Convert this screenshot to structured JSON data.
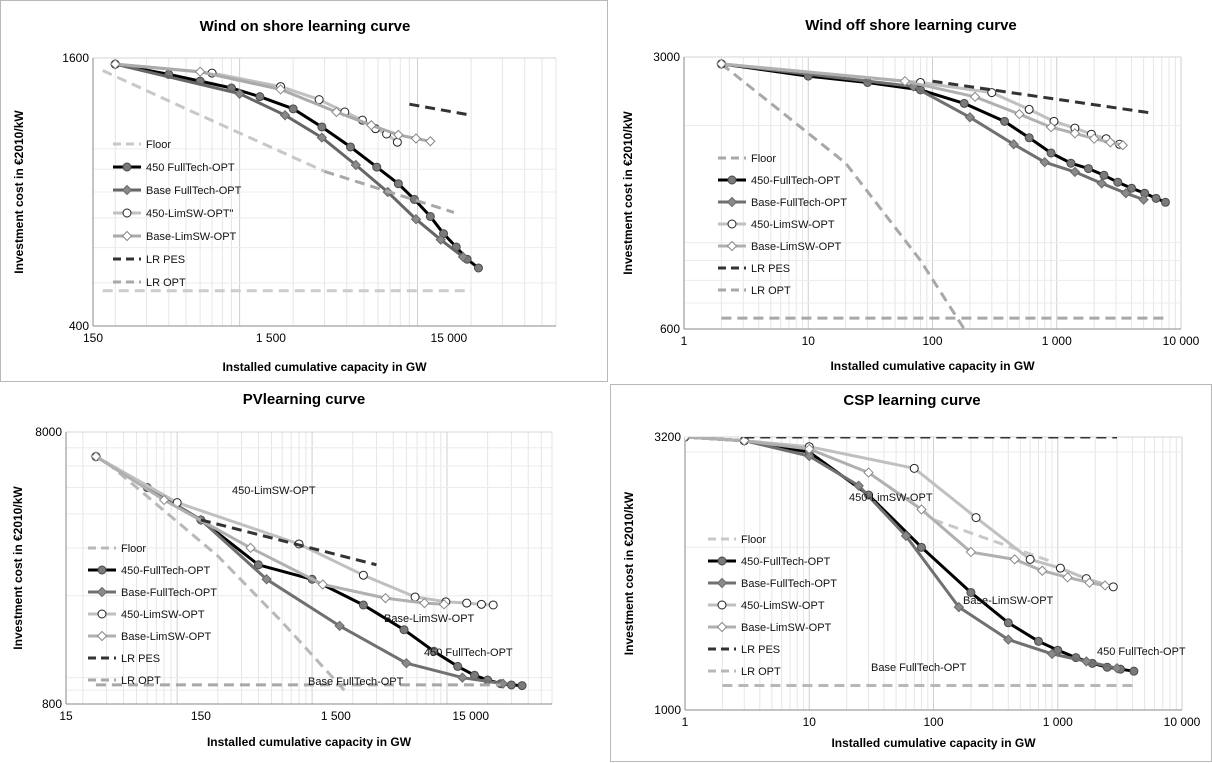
{
  "chart_data": [
    {
      "type": "line",
      "title": "Wind on shore learning curve",
      "xlabel": "Installed cumulative capacity in GW",
      "ylabel": "Investment cost in €2010/kW",
      "xscale": "log",
      "yscale": "log",
      "xlim": [
        150,
        60000
      ],
      "ylim": [
        400,
        1600
      ],
      "xticks": [
        150,
        1500,
        15000
      ],
      "xtick_labels": [
        "150",
        "1 500",
        "15 000"
      ],
      "yticks": [
        400,
        1600
      ],
      "ytick_labels": [
        "400",
        "1600"
      ],
      "legend": "left",
      "annotations": [],
      "series": [
        {
          "name": "Floor",
          "style": "dash",
          "color": "#c8c8c8",
          "marker": "none",
          "x": [
            170,
            500,
            1200,
            3000
          ],
          "y": [
            1500,
            1230,
            1050,
            890
          ]
        },
        {
          "name": "450 FullTech-OPT",
          "style": "solid",
          "color": "#000000",
          "marker": "circle-filled",
          "x": [
            200,
            400,
            600,
            900,
            1300,
            2000,
            2900,
            4200,
            5900,
            7800,
            9600,
            11800,
            14000,
            16500,
            19000,
            22000
          ],
          "y": [
            1550,
            1470,
            1420,
            1370,
            1310,
            1230,
            1120,
            1010,
            910,
            835,
            770,
            705,
            645,
            602,
            565,
            540
          ]
        },
        {
          "name": "Base FullTech-OPT",
          "style": "solid",
          "color": "#666666",
          "marker": "diamond-filled",
          "x": [
            200,
            1000,
            1800,
            2900,
            4500,
            6800,
            9800,
            13500,
            18000
          ],
          "y": [
            1550,
            1330,
            1190,
            1060,
            920,
            800,
            695,
            625,
            572
          ]
        },
        {
          "name": "450-LimSW-OPT\"",
          "style": "solid",
          "color": "#c0c0c0",
          "marker": "circle-open",
          "x": [
            200,
            700,
            1700,
            2800,
            3900,
            4900,
            5800,
            6700,
            7700
          ],
          "y": [
            1550,
            1480,
            1380,
            1290,
            1210,
            1160,
            1110,
            1080,
            1035
          ]
        },
        {
          "name": "Base-LimSW-OPT",
          "style": "solid",
          "color": "#aaaaaa",
          "marker": "diamond-open",
          "x": [
            200,
            600,
            1700,
            3500,
            5500,
            7800,
            9800,
            11800
          ],
          "y": [
            1550,
            1490,
            1360,
            1210,
            1130,
            1075,
            1055,
            1040
          ]
        },
        {
          "name": "LR PES",
          "style": "dash",
          "color": "#333333",
          "marker": "none",
          "x": [
            9000,
            20000
          ],
          "y": [
            1260,
            1190
          ]
        },
        {
          "name": "LR OPT",
          "style": "dash",
          "color": "#a8a8a8",
          "marker": "none",
          "x": [
            3000,
            16000
          ],
          "y": [
            890,
            720
          ]
        },
        {
          "name": "",
          "style": "dash",
          "color": "#cccccc",
          "marker": "none",
          "x": [
            170,
            20000
          ],
          "y": [
            480,
            480
          ]
        }
      ]
    },
    {
      "type": "line",
      "title": "Wind off shore learning curve",
      "xlabel": "Installed cumulative capacity in GW",
      "ylabel": "Investment cost in €2010/kW",
      "xscale": "log",
      "yscale": "log",
      "xlim": [
        1,
        10000
      ],
      "ylim": [
        600,
        3000
      ],
      "xticks": [
        1,
        10,
        100,
        1000,
        10000
      ],
      "xtick_labels": [
        "1",
        "10",
        "100",
        "1 000",
        "10 000"
      ],
      "yticks": [
        600,
        3000
      ],
      "ytick_labels": [
        "600",
        "3000"
      ],
      "legend": "left",
      "annotations": [],
      "series": [
        {
          "name": "Floor",
          "style": "dash",
          "color": "#a8a8a8",
          "marker": "none",
          "x": [
            2,
            20,
            80,
            180
          ],
          "y": [
            2880,
            1600,
            900,
            600
          ]
        },
        {
          "name": "450-FullTech-OPT",
          "style": "solid",
          "color": "#000000",
          "marker": "circle-filled",
          "x": [
            2,
            10,
            30,
            80,
            180,
            380,
            600,
            900,
            1300,
            1800,
            2400,
            3100,
            4000,
            5100,
            6300,
            7500
          ],
          "y": [
            2880,
            2680,
            2580,
            2470,
            2280,
            2050,
            1860,
            1700,
            1600,
            1550,
            1490,
            1430,
            1380,
            1340,
            1300,
            1270
          ]
        },
        {
          "name": "Base-FullTech-OPT",
          "style": "solid",
          "color": "#707070",
          "marker": "diamond-filled",
          "x": [
            2,
            70,
            200,
            450,
            800,
            1400,
            2300,
            3600,
            5000
          ],
          "y": [
            2880,
            2520,
            2100,
            1790,
            1610,
            1520,
            1420,
            1340,
            1290
          ]
        },
        {
          "name": "450-LimSW-OPT",
          "style": "solid",
          "color": "#c0c0c0",
          "marker": "circle-open",
          "x": [
            2,
            80,
            300,
            600,
            950,
            1400,
            1900,
            2500,
            3200
          ],
          "y": [
            2880,
            2580,
            2430,
            2200,
            2050,
            1970,
            1900,
            1850,
            1790
          ]
        },
        {
          "name": "Base-LimSW-OPT",
          "style": "solid",
          "color": "#b0b0b0",
          "marker": "diamond-open",
          "x": [
            2,
            60,
            220,
            500,
            900,
            1400,
            2000,
            2700,
            3400
          ],
          "y": [
            2880,
            2600,
            2370,
            2140,
            1980,
            1910,
            1850,
            1810,
            1780
          ]
        },
        {
          "name": "LR PES",
          "style": "dash",
          "color": "#333333",
          "marker": "none",
          "x": [
            100,
            6000
          ],
          "y": [
            2600,
            2150
          ]
        },
        {
          "name": "LR OPT",
          "style": "dash",
          "color": "#a8a8a8",
          "marker": "none",
          "x": [
            2,
            7500
          ],
          "y": [
            640,
            640
          ]
        }
      ]
    },
    {
      "type": "line",
      "title": "PVlearning curve",
      "xlabel": "Installed cumulative capacity in GW",
      "ylabel": "Investment cost in €2010/kW",
      "xscale": "log",
      "yscale": "log",
      "xlim": [
        15,
        60000
      ],
      "ylim": [
        800,
        8000
      ],
      "xticks": [
        15,
        150,
        1500,
        15000
      ],
      "xtick_labels": [
        "15",
        "150",
        "1 500",
        "15 000"
      ],
      "yticks": [
        800,
        8000
      ],
      "ytick_labels": [
        "800",
        "8000"
      ],
      "legend": "left",
      "annotations": [
        "450-LimSW-OPT",
        "Base-LimSW-OPT",
        "450 FullTech-OPT",
        "Base FullTech-OPT"
      ],
      "series": [
        {
          "name": "Floor",
          "style": "dash",
          "color": "#b8b8b8",
          "marker": "none",
          "x": [
            30,
            200,
            600,
            1800
          ],
          "y": [
            6200,
            2800,
            1600,
            880
          ]
        },
        {
          "name": "450-FullTech-OPT",
          "style": "solid",
          "color": "#000000",
          "marker": "circle-filled",
          "x": [
            25,
            60,
            150,
            400,
            1000,
            2400,
            4800,
            8000,
            12000,
            16000,
            20000,
            25000,
            30000,
            36000
          ],
          "y": [
            6500,
            5000,
            3800,
            2600,
            2300,
            1850,
            1500,
            1250,
            1100,
            1020,
            980,
            950,
            940,
            935
          ]
        },
        {
          "name": "Base-FullTech-OPT",
          "style": "solid",
          "color": "#707070",
          "marker": "diamond-filled",
          "x": [
            25,
            150,
            460,
            1600,
            5000,
            13000,
            26000
          ],
          "y": [
            6500,
            3800,
            2300,
            1550,
            1130,
            1000,
            950
          ]
        },
        {
          "name": "450-LimSW-OPT",
          "style": "solid",
          "color": "#c0c0c0",
          "marker": "circle-open",
          "x": [
            25,
            100,
            800,
            2400,
            5800,
            9800,
            14000,
            18000,
            22000
          ],
          "y": [
            6500,
            4400,
            3100,
            2380,
            1980,
            1900,
            1880,
            1860,
            1850
          ]
        },
        {
          "name": "Base-LimSW-OPT",
          "style": "solid",
          "color": "#b0b0b0",
          "marker": "diamond-open",
          "x": [
            25,
            80,
            350,
            1200,
            3500,
            6800,
            9500
          ],
          "y": [
            6500,
            4500,
            3000,
            2200,
            1960,
            1880,
            1860
          ]
        },
        {
          "name": "LR PES",
          "style": "dash",
          "color": "#333333",
          "marker": "none",
          "x": [
            150,
            3000
          ],
          "y": [
            3800,
            2600
          ]
        },
        {
          "name": "LR OPT",
          "style": "dash",
          "color": "#a8a8a8",
          "marker": "none",
          "x": [
            25,
            25000
          ],
          "y": [
            940,
            940
          ]
        }
      ]
    },
    {
      "type": "line",
      "title": "CSP learning curve",
      "xlabel": "Installed cumulative capacity in GW",
      "ylabel": "Investment cost in €2010/kW",
      "xscale": "log",
      "yscale": "log",
      "xlim": [
        1,
        10000
      ],
      "ylim": [
        1000,
        3200
      ],
      "xticks": [
        1,
        10,
        100,
        1000,
        10000
      ],
      "xtick_labels": [
        "1",
        "10",
        "100",
        "1 000",
        "10 000"
      ],
      "yticks": [
        1000,
        3200
      ],
      "ytick_labels": [
        "1000",
        "3200"
      ],
      "legend": "left",
      "annotations": [
        "450-LimSW-OPT",
        "Base-LimSW-OPT",
        "450 FullTech-OPT",
        "Base FullTech-OPT"
      ],
      "series": [
        {
          "name": "Floor",
          "style": "dash",
          "color": "#c8c8c8",
          "marker": "none",
          "x": [
            100,
            900
          ],
          "y": [
            2250,
            1880
          ]
        },
        {
          "name": "450-FullTech-OPT",
          "style": "solid",
          "color": "#000000",
          "marker": "circle-filled",
          "x": [
            1,
            3,
            10,
            30,
            80,
            200,
            400,
            700,
            1000,
            1400,
            1900,
            2500,
            3200,
            4100
          ],
          "y": [
            3200,
            3150,
            3000,
            2500,
            2000,
            1650,
            1450,
            1340,
            1290,
            1250,
            1220,
            1200,
            1190,
            1180
          ]
        },
        {
          "name": "Base-FullTech-OPT",
          "style": "solid",
          "color": "#707070",
          "marker": "diamond-filled",
          "x": [
            1,
            3,
            10,
            25,
            60,
            160,
            400,
            900,
            1700,
            3000
          ],
          "y": [
            3200,
            3150,
            2950,
            2600,
            2100,
            1550,
            1350,
            1270,
            1230,
            1195
          ]
        },
        {
          "name": "450-LimSW-OPT",
          "style": "solid",
          "color": "#c0c0c0",
          "marker": "circle-open",
          "x": [
            1,
            3,
            10,
            70,
            220,
            600,
            1050,
            1700,
            2800
          ],
          "y": [
            3200,
            3150,
            3070,
            2800,
            2270,
            1900,
            1830,
            1750,
            1690
          ]
        },
        {
          "name": "Base-LimSW-OPT",
          "style": "solid",
          "color": "#b0b0b0",
          "marker": "diamond-open",
          "x": [
            1,
            3,
            10,
            30,
            80,
            200,
            450,
            750,
            1200,
            1800,
            2400
          ],
          "y": [
            3200,
            3150,
            3040,
            2750,
            2350,
            1960,
            1900,
            1810,
            1760,
            1720,
            1700
          ]
        },
        {
          "name": "LR PES",
          "style": "dash",
          "color": "#333333",
          "marker": "none",
          "x": [
            3,
            3000
          ],
          "y": [
            3200,
            3200
          ]
        },
        {
          "name": "LR OPT",
          "style": "dash",
          "color": "#b8b8b8",
          "marker": "none",
          "x": [
            2,
            4000
          ],
          "y": [
            1110,
            1110
          ]
        }
      ]
    }
  ]
}
